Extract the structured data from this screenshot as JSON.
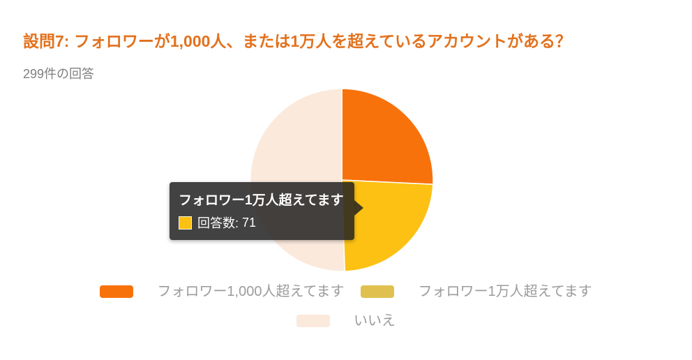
{
  "header": {
    "title": "設問7: フォロワーが1,000人、または1万人を超えているアカウントがある？",
    "subtitle": "299件の回答"
  },
  "colors": {
    "title": "#E2711D",
    "subtitle": "#7F7F7F",
    "legend_text": "#9B9B9B",
    "background": "#FFFFFF",
    "slice_border": "#FFFFFF"
  },
  "chart_data": {
    "type": "pie",
    "title": "設問7: フォロワーが1,000人、または1万人を超えているアカウントがある？",
    "total_responses": 299,
    "start_angle_deg": 0,
    "direction": "clockwise",
    "legend_position": "bottom",
    "series": [
      {
        "label": "フォロワー1,000人超えてます",
        "value": 77,
        "percent": 25.8,
        "color": "#F8720C",
        "legend_color": "#F8720C",
        "estimated": true
      },
      {
        "label": "フォロワー1万人超えてます",
        "value": 71,
        "percent": 23.7,
        "color": "#FDC113",
        "legend_color": "#E0C14F",
        "estimated": false
      },
      {
        "label": "いいえ",
        "value": 151,
        "percent": 50.5,
        "color": "#FBE9DC",
        "legend_color": "#FBE9DC",
        "estimated": true
      }
    ]
  },
  "tooltip": {
    "title": "フォロワー1万人超えてます",
    "count_label": "回答数:",
    "count_value": "71",
    "swatch_color": "#FDC113",
    "background": "#212121"
  }
}
